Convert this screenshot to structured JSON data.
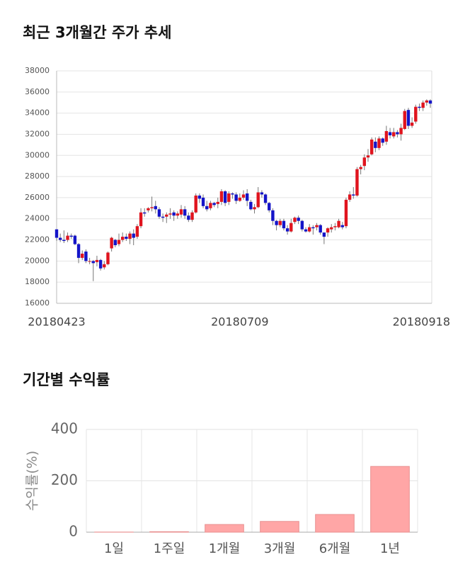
{
  "chart_data": [
    {
      "type": "candlestick",
      "title": "최근 3개월간 주가 추세",
      "categories": [
        "20180423",
        null,
        null,
        null,
        null,
        null,
        null,
        null,
        null,
        null,
        null,
        null,
        null,
        null,
        null,
        null,
        null,
        null,
        null,
        null,
        null,
        null,
        null,
        null,
        null,
        null,
        null,
        null,
        null,
        null,
        null,
        null,
        null,
        null,
        null,
        null,
        null,
        null,
        null,
        null,
        null,
        null,
        null,
        null,
        null,
        null,
        null,
        null,
        null,
        null,
        "20180709",
        null,
        null,
        null,
        null,
        null,
        null,
        null,
        null,
        null,
        null,
        null,
        null,
        null,
        null,
        null,
        null,
        null,
        null,
        null,
        null,
        null,
        null,
        null,
        null,
        null,
        null,
        null,
        null,
        null,
        null,
        null,
        null,
        null,
        null,
        null,
        null,
        null,
        null,
        null,
        null,
        null,
        null,
        null,
        null,
        null,
        null,
        null,
        null,
        null,
        null,
        null,
        "20180918"
      ],
      "open": [
        23000,
        22200,
        22000,
        22000,
        22400,
        22400,
        21600,
        20300,
        20900,
        20000,
        20000,
        19900,
        20100,
        19400,
        19700,
        21200,
        22000,
        21600,
        22000,
        22300,
        22100,
        22600,
        22300,
        23300,
        24600,
        24800,
        25000,
        25200,
        24900,
        24200,
        24200,
        24400,
        24600,
        24300,
        24400,
        24900,
        24300,
        23900,
        24600,
        26200,
        26000,
        25200,
        25000,
        25500,
        25400,
        25600,
        26600,
        25600,
        26400,
        26300,
        25700,
        26000,
        26400,
        25600,
        24900,
        25100,
        26500,
        26300,
        25500,
        24800,
        23800,
        23400,
        23800,
        23100,
        22800,
        23700,
        24100,
        23800,
        23000,
        22800,
        23200,
        23200,
        23400,
        22700,
        22700,
        23000,
        23200,
        23200,
        23400,
        23300,
        25800,
        26300,
        26200,
        28700,
        29000,
        29800,
        30100,
        31300,
        30700,
        31600,
        31300,
        32200,
        31800,
        32200,
        32000,
        32500,
        34300,
        32800,
        33200,
        34600,
        34500,
        35000,
        35200
      ],
      "high": [
        23000,
        22600,
        22900,
        22700,
        22600,
        22500,
        21700,
        21000,
        21100,
        20300,
        20100,
        20500,
        20200,
        20000,
        20900,
        22300,
        22100,
        22600,
        22700,
        22600,
        22800,
        23000,
        23500,
        25000,
        25000,
        25100,
        26100,
        25700,
        25100,
        24500,
        24600,
        25000,
        24800,
        24700,
        25300,
        25200,
        24600,
        24800,
        26400,
        26400,
        26300,
        25700,
        25700,
        25600,
        26000,
        26800,
        26700,
        26600,
        26500,
        26500,
        26400,
        26700,
        26800,
        25800,
        25400,
        27000,
        26700,
        26400,
        25600,
        25000,
        23900,
        24000,
        24000,
        23400,
        24000,
        24200,
        24300,
        23900,
        23200,
        23500,
        23400,
        23600,
        23500,
        22700,
        23200,
        23500,
        23600,
        24000,
        23700,
        26000,
        26600,
        27000,
        28900,
        29100,
        30100,
        30600,
        31700,
        31700,
        31800,
        31700,
        32800,
        32600,
        32600,
        32400,
        33000,
        34400,
        34500,
        33600,
        34800,
        34900,
        35200,
        35300,
        35300
      ],
      "low": [
        21900,
        21800,
        21700,
        21800,
        22100,
        21500,
        19800,
        20100,
        19800,
        19700,
        18100,
        19500,
        19100,
        19200,
        19600,
        20900,
        21300,
        21400,
        21800,
        21900,
        21600,
        21500,
        22100,
        23100,
        24200,
        24600,
        24700,
        24500,
        24000,
        23700,
        23600,
        24000,
        23800,
        24000,
        24100,
        24000,
        23700,
        23700,
        24500,
        25500,
        25000,
        24700,
        24800,
        25100,
        25000,
        25300,
        25200,
        25300,
        25900,
        25400,
        25600,
        25800,
        25200,
        24800,
        24500,
        25000,
        26000,
        25300,
        24600,
        23400,
        22900,
        23200,
        22900,
        22500,
        22700,
        23500,
        23500,
        22800,
        22700,
        22700,
        22500,
        22900,
        22500,
        21600,
        22300,
        22700,
        22900,
        23100,
        23000,
        23100,
        25600,
        25900,
        26100,
        28200,
        28600,
        29400,
        30000,
        30300,
        30500,
        30900,
        31000,
        31600,
        31600,
        31700,
        31400,
        32400,
        32500,
        32600,
        33000,
        34200,
        34200,
        34700,
        34500
      ],
      "close": [
        22200,
        22000,
        21900,
        22400,
        22300,
        21600,
        20300,
        20700,
        20000,
        20000,
        19800,
        20100,
        19300,
        19700,
        20800,
        22200,
        21500,
        22000,
        22300,
        22100,
        22600,
        22200,
        23300,
        24600,
        24500,
        25000,
        25100,
        24900,
        24200,
        24100,
        24400,
        24500,
        24300,
        24500,
        24900,
        24300,
        23900,
        24600,
        26200,
        25900,
        25200,
        24900,
        25500,
        25300,
        25600,
        26600,
        25500,
        26400,
        26300,
        25700,
        26000,
        26300,
        25700,
        24900,
        25100,
        26500,
        26300,
        25500,
        24800,
        23800,
        23400,
        23800,
        23100,
        22800,
        23600,
        24100,
        23800,
        23000,
        22800,
        23200,
        23100,
        23400,
        22700,
        22300,
        23100,
        23200,
        23300,
        23800,
        23200,
        25800,
        26300,
        26200,
        28700,
        28900,
        29800,
        30000,
        31500,
        30700,
        31600,
        31200,
        32300,
        31900,
        32200,
        32000,
        32600,
        34200,
        32800,
        33100,
        34600,
        34500,
        35000,
        35200,
        34900
      ],
      "up_color": "#e0141e",
      "down_color": "#1414c8",
      "ylim": [
        16000,
        38000
      ],
      "yticks": [
        16000,
        18000,
        20000,
        22000,
        24000,
        26000,
        28000,
        30000,
        32000,
        34000,
        36000,
        38000
      ],
      "grid": true
    },
    {
      "type": "bar",
      "title": "기간별 수익률",
      "y_label": "수익률(%)",
      "categories": [
        "1일",
        "1주일",
        "1개월",
        "3개월",
        "6개월",
        "1년"
      ],
      "values": [
        0.5,
        2,
        30,
        42,
        69,
        256
      ],
      "color": "#ffa6a6",
      "ylim": [
        0,
        400
      ],
      "yticks": [
        0,
        200,
        400
      ],
      "grid": true
    }
  ]
}
